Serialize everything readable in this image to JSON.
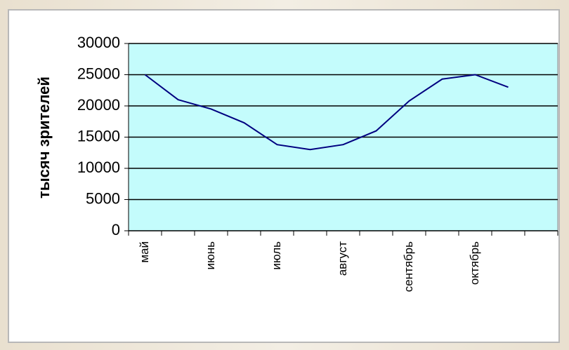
{
  "chart_data": {
    "type": "line",
    "y_label": "тысяч зрителей",
    "categories": [
      "май",
      null,
      "июнь",
      null,
      "июль",
      null,
      "август",
      null,
      "сентябрь",
      null,
      "октябрь",
      null,
      null
    ],
    "series": [
      {
        "name": null,
        "color": "#000080",
        "values": [
          25000,
          21000,
          19500,
          17300,
          13800,
          13000,
          13800,
          16000,
          20800,
          24300,
          25000,
          23000,
          null
        ]
      }
    ],
    "ylim": [
      0,
      30000
    ],
    "yticks": [
      0,
      5000,
      10000,
      15000,
      20000,
      25000,
      30000
    ],
    "grid": true,
    "plot_color": "#c4fcfc"
  }
}
